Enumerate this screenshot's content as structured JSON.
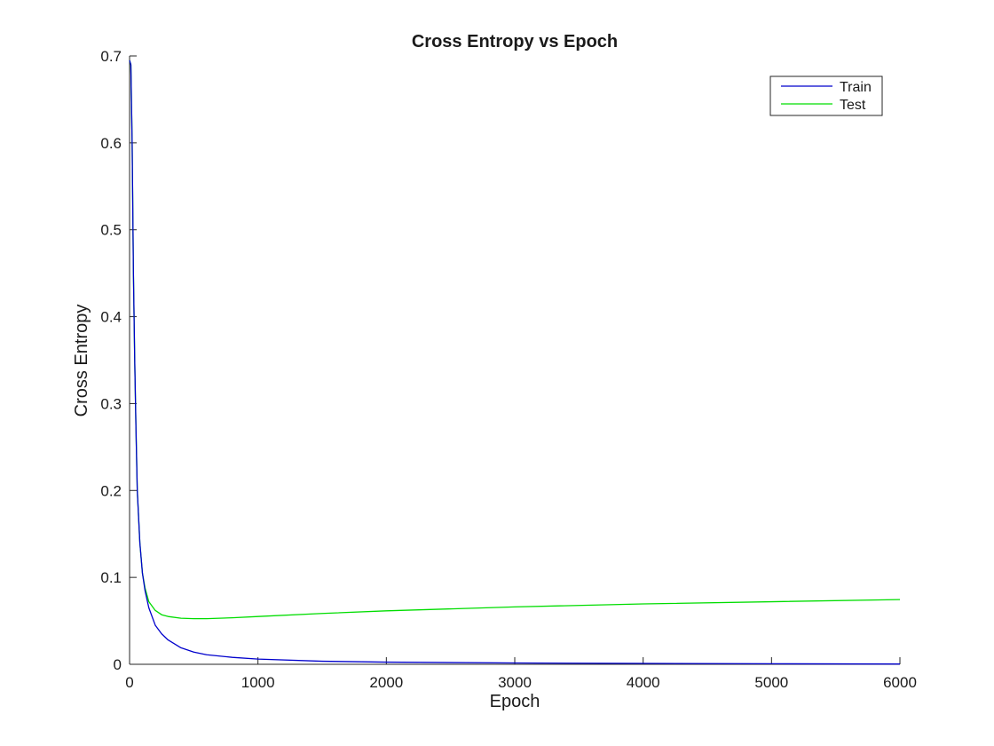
{
  "chart_data": {
    "type": "line",
    "title": "Cross Entropy vs Epoch",
    "xlabel": "Epoch",
    "ylabel": "Cross Entropy",
    "xlim": [
      0,
      6000
    ],
    "ylim": [
      0,
      0.7
    ],
    "xticks": [
      0,
      1000,
      2000,
      3000,
      4000,
      5000,
      6000
    ],
    "xtick_labels": [
      "0",
      "1000",
      "2000",
      "3000",
      "4000",
      "5000",
      "6000"
    ],
    "yticks": [
      0,
      0.1,
      0.2,
      0.3,
      0.4,
      0.5,
      0.6,
      0.7
    ],
    "ytick_labels": [
      "0",
      "0.1",
      "0.2",
      "0.3",
      "0.4",
      "0.5",
      "0.6",
      "0.7"
    ],
    "grid": false,
    "legend_position": "top-right",
    "series": [
      {
        "name": "Train",
        "color": "#0000cc",
        "x": [
          0,
          10,
          20,
          30,
          40,
          50,
          60,
          80,
          100,
          120,
          150,
          200,
          250,
          300,
          400,
          500,
          600,
          800,
          1000,
          1500,
          2000,
          3000,
          4000,
          5000,
          6000
        ],
        "y": [
          0.695,
          0.69,
          0.6,
          0.45,
          0.35,
          0.27,
          0.2,
          0.14,
          0.105,
          0.085,
          0.065,
          0.045,
          0.035,
          0.028,
          0.019,
          0.014,
          0.011,
          0.008,
          0.006,
          0.0035,
          0.0025,
          0.0015,
          0.001,
          0.0006,
          0.0003
        ]
      },
      {
        "name": "Test",
        "color": "#00dd00",
        "x": [
          0,
          10,
          20,
          30,
          40,
          50,
          60,
          80,
          100,
          120,
          150,
          200,
          250,
          300,
          400,
          500,
          600,
          800,
          1000,
          1500,
          2000,
          3000,
          4000,
          5000,
          6000
        ],
        "y": [
          0.695,
          0.69,
          0.6,
          0.45,
          0.35,
          0.27,
          0.2,
          0.14,
          0.105,
          0.088,
          0.072,
          0.062,
          0.057,
          0.055,
          0.053,
          0.0525,
          0.0525,
          0.0535,
          0.055,
          0.0585,
          0.0615,
          0.066,
          0.0695,
          0.072,
          0.0745
        ]
      }
    ]
  }
}
